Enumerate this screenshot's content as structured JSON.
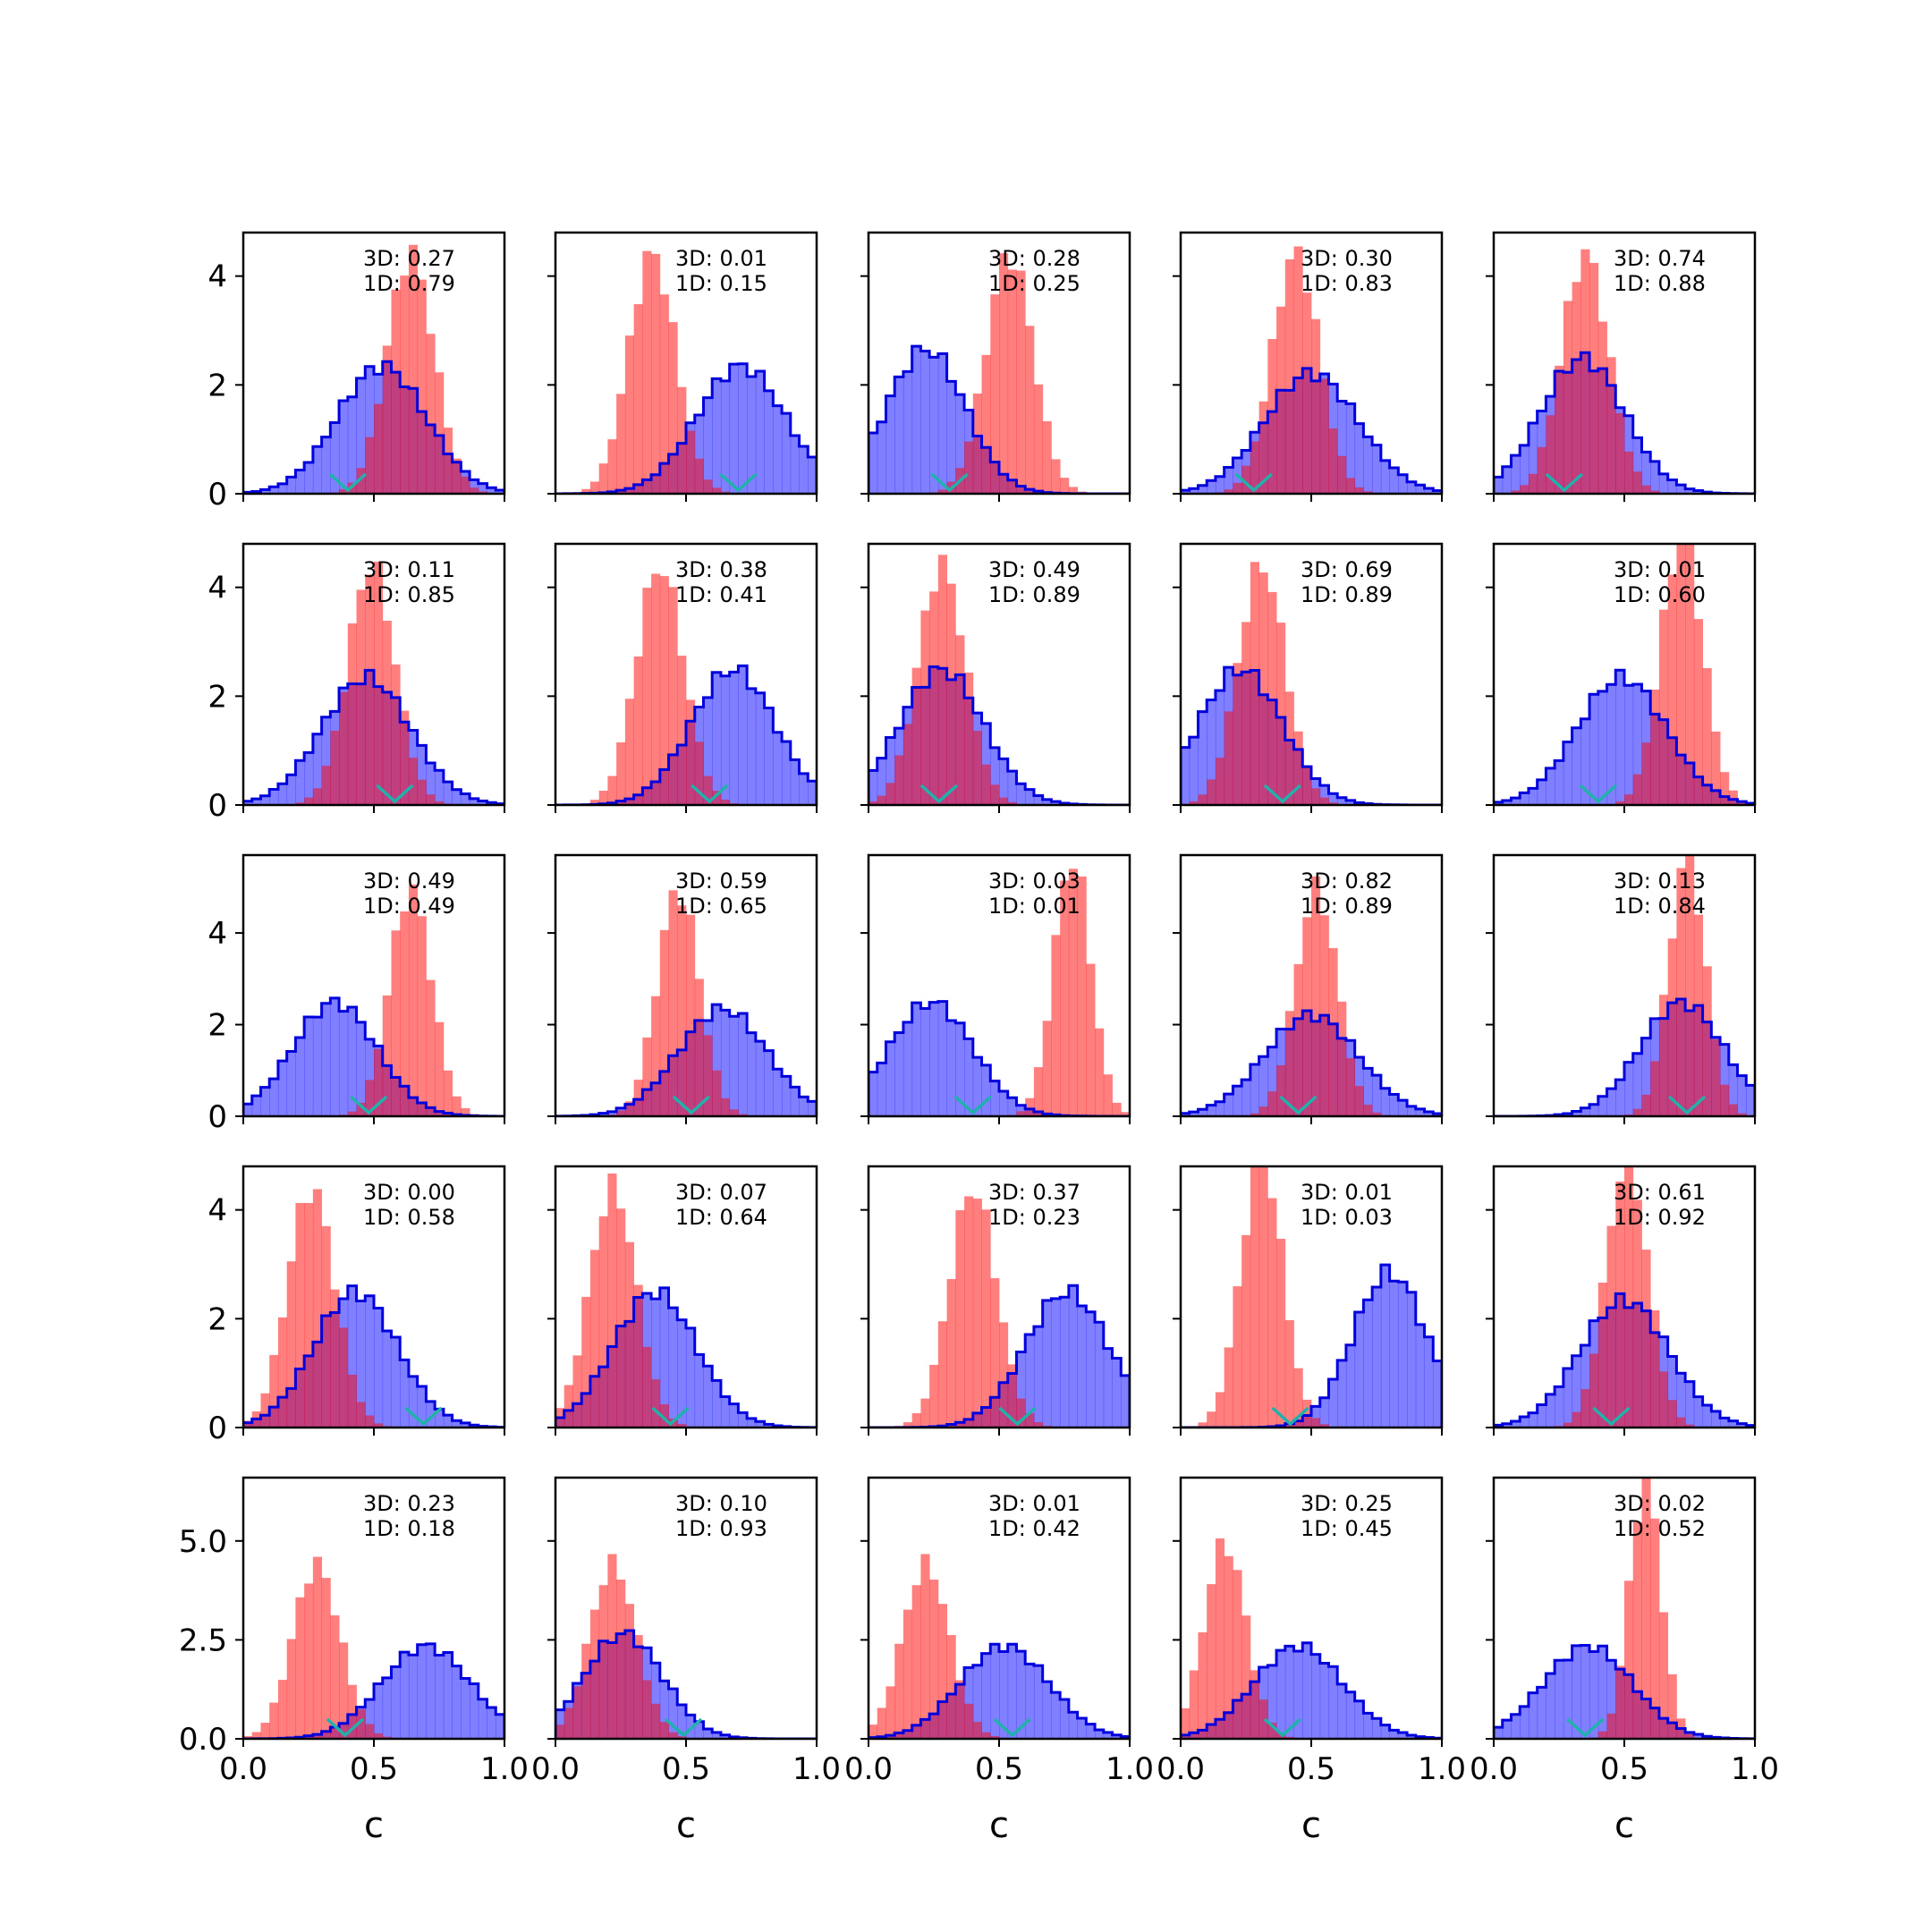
{
  "figure": {
    "grid": [
      5,
      5
    ],
    "shared_axis_labels": {
      "xlabel": "c"
    }
  },
  "colors": {
    "blue_fill": "#0000ff",
    "blue_line": "#0000dd",
    "red_fill": "#ff0000",
    "marker": "#20b2aa"
  },
  "chart_data": {
    "type": "histogram-grid",
    "description_free": true,
    "xlim": [
      0,
      1
    ],
    "xticks": [
      "0.0",
      "0.5",
      "1.0"
    ],
    "xlabel": "c",
    "row_yticks": [
      [
        "0",
        "2",
        "4"
      ],
      [
        "0",
        "2",
        "4"
      ],
      [
        "0",
        "2",
        "4"
      ],
      [
        "0",
        "2",
        "4"
      ],
      [
        "0.0",
        "2.5",
        "5.0"
      ]
    ],
    "row_ylim": [
      [
        0,
        4.8
      ],
      [
        0,
        4.8
      ],
      [
        0,
        5.7
      ],
      [
        0,
        4.8
      ],
      [
        0,
        6.6
      ]
    ],
    "panels": [
      {
        "label3d": "3D: 0.27",
        "label1d": "1D: 0.79",
        "blue": {
          "mu": 0.53,
          "sd": 0.17
        },
        "red": {
          "mu": 0.64,
          "sd": 0.09
        },
        "marker": 0.4
      },
      {
        "label3d": "3D: 0.01",
        "label1d": "1D: 0.15",
        "blue": {
          "mu": 0.71,
          "sd": 0.17
        },
        "red": {
          "mu": 0.37,
          "sd": 0.09
        },
        "marker": 0.7
      },
      {
        "label3d": "3D: 0.28",
        "label1d": "1D: 0.25",
        "blue": {
          "mu": 0.22,
          "sd": 0.15
        },
        "red": {
          "mu": 0.54,
          "sd": 0.09
        },
        "marker": 0.31
      },
      {
        "label3d": "3D: 0.30",
        "label1d": "1D: 0.83",
        "blue": {
          "mu": 0.5,
          "sd": 0.18
        },
        "red": {
          "mu": 0.44,
          "sd": 0.09
        },
        "marker": 0.28
      },
      {
        "label3d": "3D: 0.74",
        "label1d": "1D: 0.88",
        "blue": {
          "mu": 0.34,
          "sd": 0.16
        },
        "red": {
          "mu": 0.35,
          "sd": 0.09
        },
        "marker": 0.27
      },
      {
        "label3d": "3D: 0.11",
        "label1d": "1D: 0.85",
        "blue": {
          "mu": 0.47,
          "sd": 0.17
        },
        "red": {
          "mu": 0.49,
          "sd": 0.09
        },
        "marker": 0.58
      },
      {
        "label3d": "3D: 0.38",
        "label1d": "1D: 0.41",
        "blue": {
          "mu": 0.68,
          "sd": 0.16
        },
        "red": {
          "mu": 0.4,
          "sd": 0.09
        },
        "marker": 0.59
      },
      {
        "label3d": "3D: 0.49",
        "label1d": "1D: 0.89",
        "blue": {
          "mu": 0.28,
          "sd": 0.16
        },
        "red": {
          "mu": 0.28,
          "sd": 0.09
        },
        "marker": 0.27
      },
      {
        "label3d": "3D: 0.69",
        "label1d": "1D: 0.89",
        "blue": {
          "mu": 0.23,
          "sd": 0.16
        },
        "red": {
          "mu": 0.31,
          "sd": 0.09
        },
        "marker": 0.39
      },
      {
        "label3d": "3D: 0.01",
        "label1d": "1D: 0.60",
        "blue": {
          "mu": 0.49,
          "sd": 0.17
        },
        "red": {
          "mu": 0.72,
          "sd": 0.08
        },
        "marker": 0.4
      },
      {
        "label3d": "3D: 0.49",
        "label1d": "1D: 0.49",
        "blue": {
          "mu": 0.35,
          "sd": 0.16
        },
        "red": {
          "mu": 0.64,
          "sd": 0.08
        },
        "marker": 0.48
      },
      {
        "label3d": "3D: 0.59",
        "label1d": "1D: 0.65",
        "blue": {
          "mu": 0.64,
          "sd": 0.17
        },
        "red": {
          "mu": 0.47,
          "sd": 0.08
        },
        "marker": 0.52
      },
      {
        "label3d": "3D: 0.03",
        "label1d": "1D: 0.01",
        "blue": {
          "mu": 0.24,
          "sd": 0.16
        },
        "red": {
          "mu": 0.78,
          "sd": 0.07
        },
        "marker": 0.4
      },
      {
        "label3d": "3D: 0.82",
        "label1d": "1D: 0.89",
        "blue": {
          "mu": 0.5,
          "sd": 0.18
        },
        "red": {
          "mu": 0.52,
          "sd": 0.08
        },
        "marker": 0.45
      },
      {
        "label3d": "3D: 0.13",
        "label1d": "1D: 0.84",
        "blue": {
          "mu": 0.72,
          "sd": 0.16
        },
        "red": {
          "mu": 0.74,
          "sd": 0.07
        },
        "marker": 0.74
      },
      {
        "label3d": "3D: 0.00",
        "label1d": "1D: 0.58",
        "blue": {
          "mu": 0.43,
          "sd": 0.16
        },
        "red": {
          "mu": 0.26,
          "sd": 0.09
        },
        "marker": 0.69
      },
      {
        "label3d": "3D: 0.07",
        "label1d": "1D: 0.64",
        "blue": {
          "mu": 0.38,
          "sd": 0.16
        },
        "red": {
          "mu": 0.22,
          "sd": 0.09
        },
        "marker": 0.44
      },
      {
        "label3d": "3D: 0.37",
        "label1d": "1D: 0.23",
        "blue": {
          "mu": 0.76,
          "sd": 0.16
        },
        "red": {
          "mu": 0.4,
          "sd": 0.09
        },
        "marker": 0.57
      },
      {
        "label3d": "3D: 0.01",
        "label1d": "1D: 0.03",
        "blue": {
          "mu": 0.8,
          "sd": 0.14
        },
        "red": {
          "mu": 0.31,
          "sd": 0.08
        },
        "marker": 0.42
      },
      {
        "label3d": "3D: 0.61",
        "label1d": "1D: 0.92",
        "blue": {
          "mu": 0.5,
          "sd": 0.17
        },
        "red": {
          "mu": 0.51,
          "sd": 0.08
        },
        "marker": 0.45
      },
      {
        "label3d": "3D: 0.23",
        "label1d": "1D: 0.18",
        "blue": {
          "mu": 0.7,
          "sd": 0.17
        },
        "red": {
          "mu": 0.28,
          "sd": 0.09
        },
        "marker": 0.39
      },
      {
        "label3d": "3D: 0.10",
        "label1d": "1D: 0.93",
        "blue": {
          "mu": 0.26,
          "sd": 0.15
        },
        "red": {
          "mu": 0.22,
          "sd": 0.09
        },
        "marker": 0.49
      },
      {
        "label3d": "3D: 0.01",
        "label1d": "1D: 0.42",
        "blue": {
          "mu": 0.52,
          "sd": 0.17
        },
        "red": {
          "mu": 0.22,
          "sd": 0.09
        },
        "marker": 0.55
      },
      {
        "label3d": "3D: 0.25",
        "label1d": "1D: 0.45",
        "blue": {
          "mu": 0.45,
          "sd": 0.17
        },
        "red": {
          "mu": 0.17,
          "sd": 0.08
        },
        "marker": 0.39
      },
      {
        "label3d": "3D: 0.02",
        "label1d": "1D: 0.52",
        "blue": {
          "mu": 0.36,
          "sd": 0.17
        },
        "red": {
          "mu": 0.58,
          "sd": 0.06
        },
        "marker": 0.35
      }
    ]
  }
}
